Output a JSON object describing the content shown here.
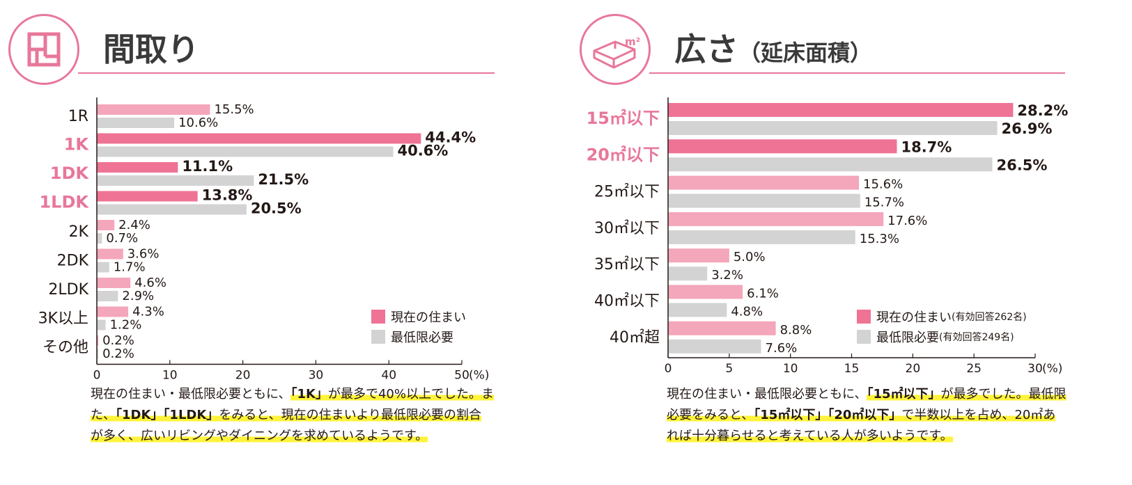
{
  "colors": {
    "current_highlight": "#ef7395",
    "current_normal": "#f4a6ba",
    "minimum": "#d3d3d3",
    "accent": "#e8779a",
    "highlight_yellow": "#fff33b"
  },
  "left_panel": {
    "title": "間取り",
    "icon": "floor-plan-icon",
    "legend": {
      "current": "現在の住まい",
      "minimum": "最低限必要"
    },
    "caption_lines": [
      [
        "現在の住まい・最低限必要ともに、",
        "「1K」",
        "が最多で40%以上でした。ま"
      ],
      [
        "た、",
        "「1DK」「1LDK」",
        "をみると、現在の住まいより最低限必要の割合"
      ],
      [
        "が多く、広いリビングやダイニングを求めているようです。"
      ]
    ]
  },
  "right_panel": {
    "title": "広さ",
    "subtitle": "（延床面積）",
    "icon": "area-m2-icon",
    "icon_label": "m²",
    "legend": {
      "current": "現在の住まい",
      "current_note": "(有効回答262名)",
      "minimum": "最低限必要",
      "minimum_note": "(有効回答249名)"
    },
    "caption_lines": [
      [
        "現在の住まい・最低限必要ともに、",
        "「15㎡以下」",
        "が最多でした。最低限"
      ],
      [
        "必要をみると、",
        "「15㎡以下」「20㎡以下」",
        "で半数以上を占め、20㎡あ"
      ],
      [
        "れば十分暮らせると考えている人が多いようです。"
      ]
    ]
  },
  "chart_data": [
    {
      "type": "bar",
      "orientation": "horizontal",
      "title": "間取り",
      "categories": [
        "1R",
        "1K",
        "1DK",
        "1LDK",
        "2K",
        "2DK",
        "2LDK",
        "3K以上",
        "その他"
      ],
      "highlighted_categories": [
        "1K",
        "1DK",
        "1LDK"
      ],
      "series": [
        {
          "name": "現在の住まい",
          "values": [
            15.5,
            44.4,
            11.1,
            13.8,
            2.4,
            3.6,
            4.6,
            4.3,
            0.2
          ]
        },
        {
          "name": "最低限必要",
          "values": [
            10.6,
            40.6,
            21.5,
            20.5,
            0.7,
            1.7,
            2.9,
            1.2,
            0.2
          ]
        }
      ],
      "xlim": [
        0,
        50
      ],
      "xticks": [
        0,
        10,
        20,
        30,
        40,
        50
      ],
      "xunit": "(%)",
      "legend": "bottom-right"
    },
    {
      "type": "bar",
      "orientation": "horizontal",
      "title": "広さ（延床面積）",
      "categories": [
        "15㎡以下",
        "20㎡以下",
        "25㎡以下",
        "30㎡以下",
        "35㎡以下",
        "40㎡以下",
        "40㎡超"
      ],
      "highlighted_categories": [
        "15㎡以下",
        "20㎡以下"
      ],
      "series": [
        {
          "name": "現在の住まい",
          "values": [
            28.2,
            18.7,
            15.6,
            17.6,
            5.0,
            6.1,
            8.8
          ]
        },
        {
          "name": "最低限必要",
          "values": [
            26.9,
            26.5,
            15.7,
            15.3,
            3.2,
            4.8,
            7.6
          ]
        }
      ],
      "xlim": [
        0,
        30
      ],
      "xticks": [
        0,
        5,
        10,
        15,
        20,
        25,
        30
      ],
      "xunit": "(%)",
      "legend": "bottom-right"
    }
  ]
}
